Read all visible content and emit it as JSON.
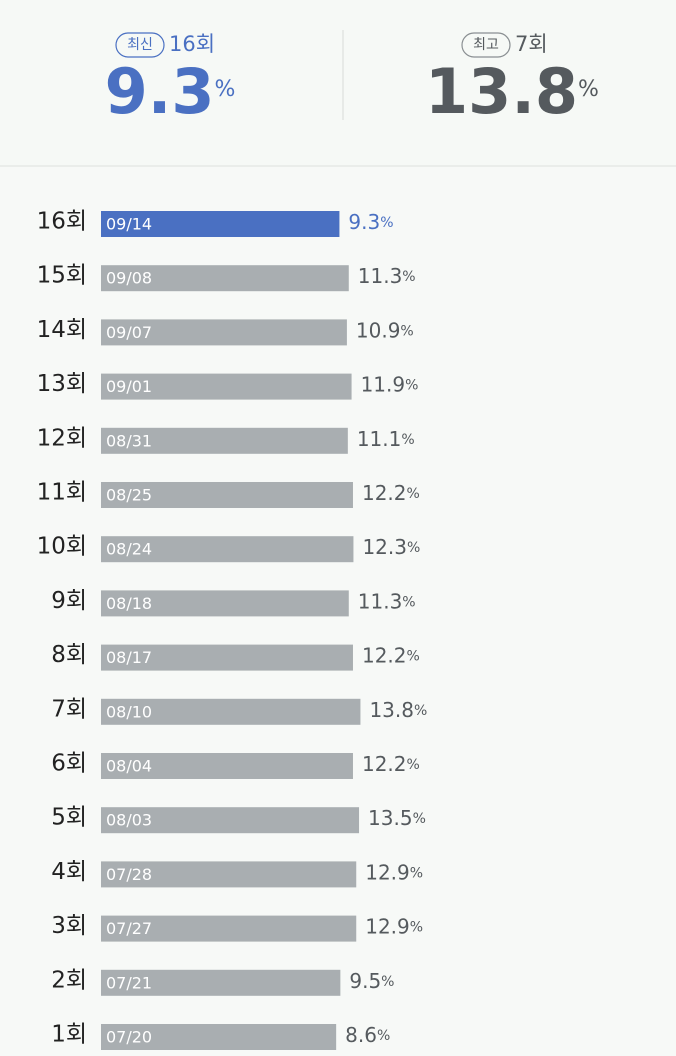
{
  "header": {
    "latest": {
      "badge": "최신",
      "episode": "16회",
      "rating": 9.3,
      "unit": "%"
    },
    "best": {
      "badge": "최고",
      "episode": "7회",
      "rating": 13.8,
      "unit": "%"
    }
  },
  "chart_data": {
    "type": "bar",
    "categories": [
      "16회",
      "15회",
      "14회",
      "13회",
      "12회",
      "11회",
      "10회",
      "9회",
      "8회",
      "7회",
      "6회",
      "5회",
      "4회",
      "3회",
      "2회",
      "1회"
    ],
    "dates": [
      "09/14",
      "09/08",
      "09/07",
      "09/01",
      "08/31",
      "08/25",
      "08/24",
      "08/18",
      "08/17",
      "08/10",
      "08/04",
      "08/03",
      "07/28",
      "07/27",
      "07/21",
      "07/20"
    ],
    "values": [
      9.3,
      11.3,
      10.9,
      11.9,
      11.1,
      12.2,
      12.3,
      11.3,
      12.2,
      13.8,
      12.2,
      13.5,
      12.9,
      12.9,
      9.5,
      8.6
    ],
    "unit": "%",
    "colors": [
      "#4a70c2",
      "#a9aeb1",
      "#a9aeb1",
      "#a9aeb1",
      "#a9aeb1",
      "#a9aeb1",
      "#a9aeb1",
      "#a9aeb1",
      "#a9aeb1",
      "#a9aeb1",
      "#a9aeb1",
      "#a9aeb1",
      "#a9aeb1",
      "#a9aeb1",
      "#a9aeb1",
      "#a9aeb1"
    ]
  }
}
